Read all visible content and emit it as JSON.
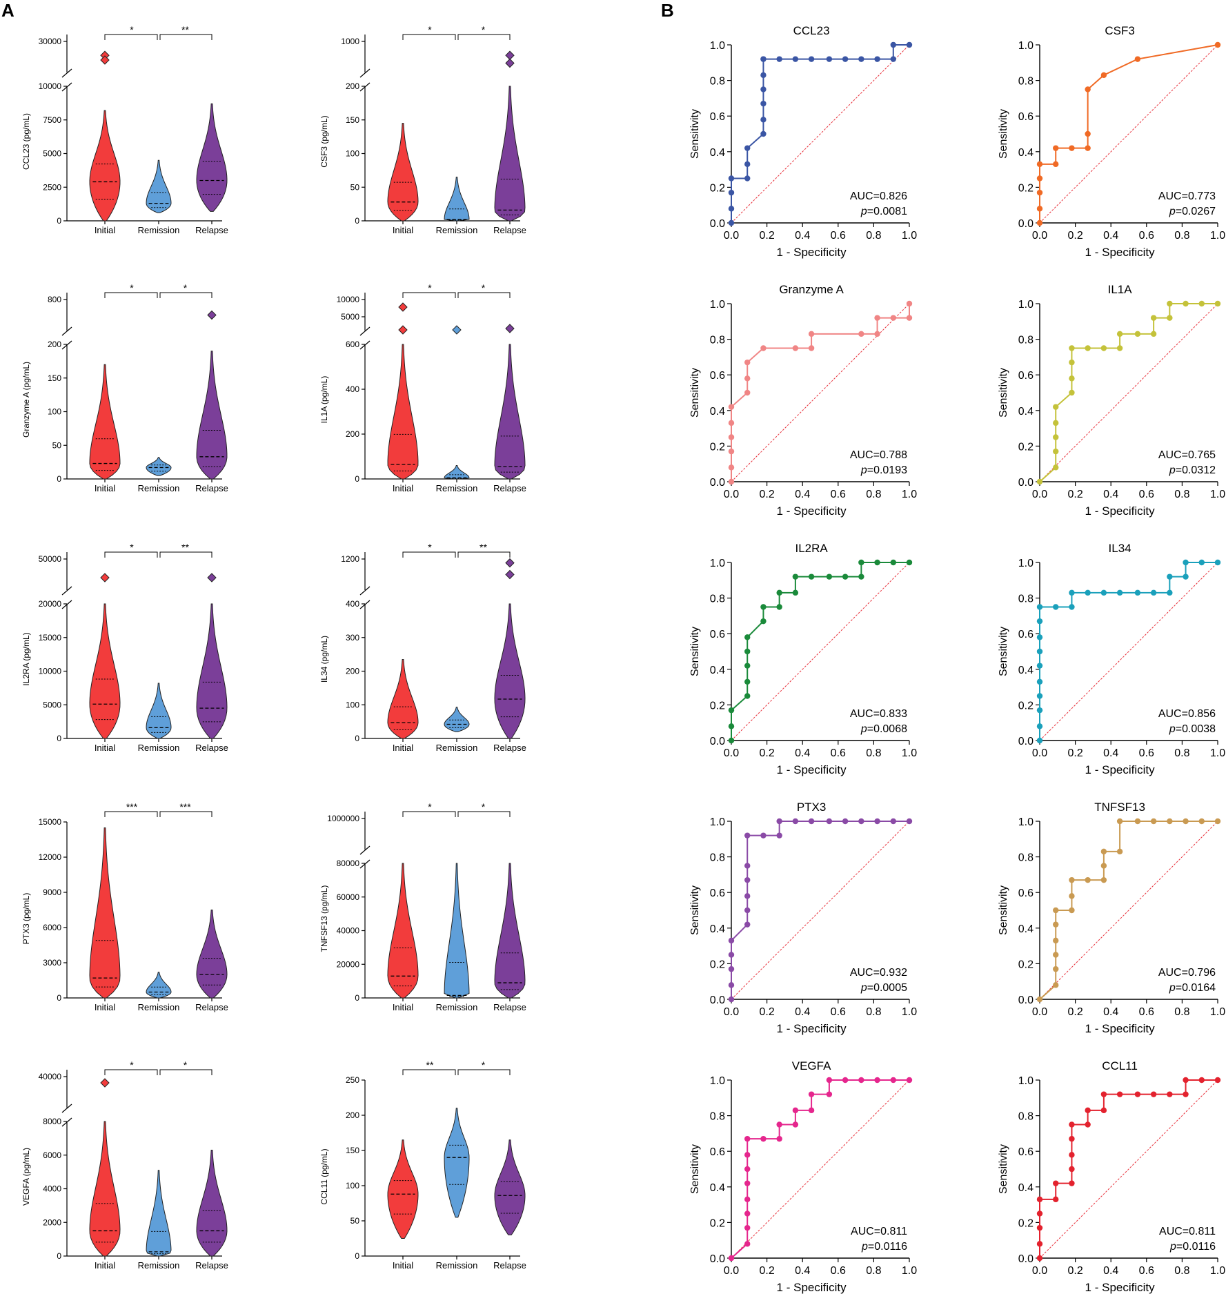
{
  "panel_labels": {
    "a": "A",
    "b": "B"
  },
  "groups": [
    "Initial",
    "Remission",
    "Relapse"
  ],
  "colors": {
    "Initial": "#f23c3c",
    "Remission": "#5f9fd9",
    "Relapse": "#7b3f99",
    "diagonal": "#e8323c"
  },
  "chart_data": [
    {
      "type": "violin",
      "name": "CCL23",
      "ylabel": "CCL23 (pg/mL)",
      "break": {
        "lower": [
          0,
          10000
        ],
        "upper_ticks": [
          30000
        ],
        "upper_range": [
          20000,
          30000
        ]
      },
      "yticks": [
        0,
        2500,
        5000,
        7500,
        10000
      ],
      "tick_labels": [
        "0",
        "2500",
        "5000",
        "7500",
        "10000"
      ],
      "upper_tick_labels": [
        "30000"
      ],
      "sig": [
        "*",
        "**"
      ],
      "outliers": {
        "Initial": [
          25500,
          24000
        ],
        "Remission": [],
        "Relapse": []
      },
      "medians": [
        2900,
        1300,
        3000
      ],
      "ranges": [
        [
          0,
          8200
        ],
        [
          600,
          4500
        ],
        [
          700,
          8700
        ]
      ]
    },
    {
      "type": "violin",
      "name": "CSF3",
      "ylabel": "CSF3 (pg/mL)",
      "break": {
        "lower": [
          0,
          200
        ],
        "upper_ticks": [
          1000
        ],
        "upper_range": [
          600,
          1000
        ]
      },
      "yticks": [
        0,
        50,
        100,
        150,
        200
      ],
      "tick_labels": [
        "0",
        "50",
        "100",
        "150",
        "200"
      ],
      "upper_tick_labels": [
        "1000"
      ],
      "sig": [
        "*",
        "*"
      ],
      "outliers": {
        "Initial": [],
        "Remission": [],
        "Relapse": [
          820,
          720
        ]
      },
      "medians": [
        28,
        2,
        16
      ],
      "ranges": [
        [
          0,
          145
        ],
        [
          0,
          65
        ],
        [
          0,
          200
        ]
      ]
    },
    {
      "type": "violin",
      "name": "Granzyme A",
      "ylabel": "Granzyme A (pg/mL)",
      "break": {
        "lower": [
          0,
          200
        ],
        "upper_ticks": [
          800
        ],
        "upper_range": [
          500,
          800
        ]
      },
      "yticks": [
        0,
        50,
        100,
        150,
        200
      ],
      "tick_labels": [
        "0",
        "50",
        "100",
        "150",
        "200"
      ],
      "upper_tick_labels": [
        "800"
      ],
      "sig": [
        "*",
        "*"
      ],
      "outliers": {
        "Initial": [],
        "Remission": [],
        "Relapse": [
          650
        ]
      },
      "medians": [
        23,
        17,
        33
      ],
      "ranges": [
        [
          0,
          170
        ],
        [
          5,
          32
        ],
        [
          0,
          190
        ]
      ]
    },
    {
      "type": "violin",
      "name": "IL1A",
      "ylabel": "IL1A (pg/mL)",
      "break": {
        "lower": [
          0,
          600
        ],
        "upper_ticks": [
          5000,
          10000
        ],
        "upper_range": [
          1000,
          10000
        ]
      },
      "yticks": [
        0,
        200,
        400,
        600
      ],
      "tick_labels": [
        "0",
        "200",
        "400",
        "600"
      ],
      "upper_tick_labels": [
        "5000",
        "10000"
      ],
      "sig": [
        "*",
        "*"
      ],
      "outliers": {
        "Initial": [
          7800,
          1200
        ],
        "Remission": [
          1200
        ],
        "Relapse": [
          1600
        ]
      },
      "medians": [
        65,
        5,
        55
      ],
      "ranges": [
        [
          0,
          600
        ],
        [
          0,
          60
        ],
        [
          0,
          600
        ]
      ]
    },
    {
      "type": "violin",
      "name": "IL2RA",
      "ylabel": "IL2RA (pg/mL)",
      "break": {
        "lower": [
          0,
          20000
        ],
        "upper_ticks": [
          50000
        ],
        "upper_range": [
          30000,
          50000
        ]
      },
      "yticks": [
        0,
        5000,
        10000,
        15000,
        20000
      ],
      "tick_labels": [
        "0",
        "5000",
        "10000",
        "15000",
        "20000"
      ],
      "upper_tick_labels": [
        "50000"
      ],
      "sig": [
        "*",
        "**"
      ],
      "outliers": {
        "Initial": [
          38000
        ],
        "Remission": [],
        "Relapse": [
          38000
        ]
      },
      "medians": [
        5100,
        1600,
        4500
      ],
      "ranges": [
        [
          0,
          20000
        ],
        [
          0,
          8200
        ],
        [
          0,
          20000
        ]
      ]
    },
    {
      "type": "violin",
      "name": "IL34",
      "ylabel": "IL34 (pg/mL)",
      "break": {
        "lower": [
          0,
          400
        ],
        "upper_ticks": [
          1200
        ],
        "upper_range": [
          800,
          1200
        ]
      },
      "yticks": [
        0,
        100,
        200,
        300,
        400
      ],
      "tick_labels": [
        "0",
        "100",
        "200",
        "300",
        "400"
      ],
      "upper_tick_labels": [
        "1200"
      ],
      "sig": [
        "*",
        "**"
      ],
      "outliers": {
        "Initial": [],
        "Remission": [],
        "Relapse": [
          1150,
          1000
        ]
      },
      "medians": [
        47,
        42,
        117
      ],
      "ranges": [
        [
          0,
          235
        ],
        [
          20,
          93
        ],
        [
          0,
          400
        ]
      ]
    },
    {
      "type": "violin",
      "name": "PTX3",
      "ylabel": "PTX3 (pg/mL)",
      "yticks": [
        0,
        3000,
        6000,
        9000,
        12000,
        15000
      ],
      "tick_labels": [
        "0",
        "3000",
        "6000",
        "9000",
        "12000",
        "15000"
      ],
      "sig": [
        "***",
        "***"
      ],
      "outliers": {
        "Initial": [],
        "Remission": [],
        "Relapse": []
      },
      "medians": [
        1700,
        500,
        2000
      ],
      "ranges": [
        [
          0,
          14500
        ],
        [
          0,
          2200
        ],
        [
          0,
          7500
        ]
      ]
    },
    {
      "type": "violin",
      "name": "TNFSF13",
      "ylabel": "TNFSF13 (pg/mL)",
      "break": {
        "lower": [
          0,
          80000
        ],
        "upper_ticks": [
          1000000
        ],
        "upper_range": [
          100000,
          1000000
        ]
      },
      "yticks": [
        0,
        20000,
        40000,
        60000,
        80000
      ],
      "tick_labels": [
        "0",
        "20000",
        "40000",
        "60000",
        "80000"
      ],
      "upper_tick_labels": [
        "1000000"
      ],
      "sig": [
        "*",
        "*"
      ],
      "outliers": {
        "Initial": [],
        "Remission": [],
        "Relapse": []
      },
      "medians": [
        13000,
        1500,
        9000
      ],
      "ranges": [
        [
          0,
          80000
        ],
        [
          0,
          80000
        ],
        [
          0,
          80000
        ]
      ]
    },
    {
      "type": "violin",
      "name": "VEGFA",
      "ylabel": "VEGFA (pg/mL)",
      "break": {
        "lower": [
          0,
          8000
        ],
        "upper_ticks": [
          40000
        ],
        "upper_range": [
          20000,
          40000
        ]
      },
      "yticks": [
        0,
        2000,
        4000,
        6000,
        8000
      ],
      "tick_labels": [
        "0",
        "2000",
        "4000",
        "6000",
        "8000"
      ],
      "upper_tick_labels": [
        "40000"
      ],
      "sig": [
        "*",
        "*"
      ],
      "outliers": {
        "Initial": [
          36000
        ],
        "Remission": [],
        "Relapse": []
      },
      "medians": [
        1500,
        250,
        1500
      ],
      "ranges": [
        [
          0,
          8000
        ],
        [
          0,
          5100
        ],
        [
          0,
          6300
        ]
      ]
    },
    {
      "type": "violin",
      "name": "CCL11",
      "ylabel": "CCL11 (pg/mL)",
      "yticks": [
        0,
        50,
        100,
        150,
        200,
        250
      ],
      "tick_labels": [
        "0",
        "50",
        "100",
        "150",
        "200",
        "250"
      ],
      "sig": [
        "**",
        "*"
      ],
      "outliers": {
        "Initial": [],
        "Remission": [],
        "Relapse": []
      },
      "medians": [
        88,
        140,
        86
      ],
      "ranges": [
        [
          25,
          165
        ],
        [
          55,
          210
        ],
        [
          30,
          165
        ]
      ]
    }
  ],
  "roc_data": [
    {
      "type": "line",
      "title": "CCL23",
      "color": "#3a55a4",
      "auc": "AUC=0.826",
      "p": "=0.0081",
      "x": [
        0,
        0,
        0,
        0,
        0.09,
        0.09,
        0.09,
        0.18,
        0.18,
        0.18,
        0.18,
        0.18,
        0.18,
        0.18,
        0.27,
        0.36,
        0.45,
        0.55,
        0.64,
        0.73,
        0.82,
        0.91,
        0.91,
        1
      ],
      "y": [
        0,
        0.08,
        0.17,
        0.25,
        0.25,
        0.33,
        0.42,
        0.5,
        0.58,
        0.67,
        0.75,
        0.83,
        0.92,
        0.92,
        0.92,
        0.92,
        0.92,
        0.92,
        0.92,
        0.92,
        0.92,
        0.92,
        1,
        1
      ]
    },
    {
      "type": "line",
      "title": "CSF3",
      "color": "#f06a25",
      "auc": "AUC=0.773",
      "p": "=0.0267",
      "x": [
        0,
        0,
        0,
        0,
        0,
        0.09,
        0.09,
        0.18,
        0.27,
        0.27,
        0.27,
        0.36,
        0.55,
        1
      ],
      "y": [
        0,
        0.08,
        0.17,
        0.25,
        0.33,
        0.33,
        0.42,
        0.42,
        0.42,
        0.5,
        0.75,
        0.83,
        0.92,
        1
      ]
    },
    {
      "type": "line",
      "title": "Granzyme A",
      "color": "#f08585",
      "auc": "AUC=0.788",
      "p": "=0.0193",
      "x": [
        0,
        0,
        0,
        0,
        0,
        0,
        0.09,
        0.09,
        0.09,
        0.18,
        0.36,
        0.45,
        0.45,
        0.73,
        0.82,
        0.82,
        0.91,
        1,
        1
      ],
      "y": [
        0,
        0.08,
        0.17,
        0.25,
        0.33,
        0.42,
        0.5,
        0.58,
        0.67,
        0.75,
        0.75,
        0.75,
        0.83,
        0.83,
        0.83,
        0.92,
        0.92,
        0.92,
        1
      ]
    },
    {
      "type": "line",
      "title": "IL1A",
      "color": "#c4c23a",
      "auc": "AUC=0.765",
      "p": "=0.0312",
      "x": [
        0,
        0.09,
        0.09,
        0.09,
        0.09,
        0.09,
        0.18,
        0.18,
        0.18,
        0.18,
        0.27,
        0.36,
        0.45,
        0.45,
        0.55,
        0.64,
        0.64,
        0.73,
        0.73,
        0.82,
        0.91,
        1
      ],
      "y": [
        0,
        0.08,
        0.17,
        0.25,
        0.33,
        0.42,
        0.5,
        0.58,
        0.67,
        0.75,
        0.75,
        0.75,
        0.75,
        0.83,
        0.83,
        0.83,
        0.92,
        0.92,
        1,
        1,
        1,
        1
      ]
    },
    {
      "type": "line",
      "title": "IL2RA",
      "color": "#1a8a3a",
      "auc": "AUC=0.833",
      "p": "=0.0068",
      "x": [
        0,
        0,
        0,
        0.09,
        0.09,
        0.09,
        0.09,
        0.09,
        0.18,
        0.18,
        0.27,
        0.27,
        0.36,
        0.36,
        0.45,
        0.55,
        0.64,
        0.73,
        0.73,
        0.82,
        0.91,
        1
      ],
      "y": [
        0,
        0.08,
        0.17,
        0.25,
        0.33,
        0.42,
        0.5,
        0.58,
        0.67,
        0.75,
        0.75,
        0.83,
        0.83,
        0.92,
        0.92,
        0.92,
        0.92,
        0.92,
        1,
        1,
        1,
        1
      ]
    },
    {
      "type": "line",
      "title": "IL34",
      "color": "#1aa0bb",
      "auc": "AUC=0.856",
      "p": "=0.0038",
      "x": [
        0,
        0,
        0,
        0,
        0,
        0,
        0,
        0,
        0,
        0,
        0.09,
        0.18,
        0.18,
        0.27,
        0.36,
        0.45,
        0.55,
        0.64,
        0.73,
        0.73,
        0.82,
        0.82,
        0.91,
        1
      ],
      "y": [
        0,
        0.08,
        0.17,
        0.25,
        0.33,
        0.42,
        0.5,
        0.58,
        0.67,
        0.75,
        0.75,
        0.75,
        0.83,
        0.83,
        0.83,
        0.83,
        0.83,
        0.83,
        0.83,
        0.92,
        0.92,
        1,
        1,
        1
      ]
    },
    {
      "type": "line",
      "title": "PTX3",
      "color": "#8a4aa6",
      "auc": "AUC=0.932",
      "p": "=0.0005",
      "x": [
        0,
        0,
        0,
        0,
        0,
        0.09,
        0.09,
        0.09,
        0.09,
        0.09,
        0.09,
        0.18,
        0.27,
        0.27,
        0.36,
        0.45,
        0.55,
        0.64,
        0.73,
        0.82,
        0.91,
        1
      ],
      "y": [
        0,
        0.08,
        0.17,
        0.25,
        0.33,
        0.42,
        0.5,
        0.58,
        0.67,
        0.75,
        0.92,
        0.92,
        0.92,
        1,
        1,
        1,
        1,
        1,
        1,
        1,
        1,
        1
      ]
    },
    {
      "type": "line",
      "title": "TNFSF13",
      "color": "#c99a52",
      "auc": "AUC=0.796",
      "p": "=0.0164",
      "x": [
        0,
        0.09,
        0.09,
        0.09,
        0.09,
        0.09,
        0.09,
        0.18,
        0.18,
        0.18,
        0.27,
        0.36,
        0.36,
        0.36,
        0.45,
        0.45,
        0.55,
        0.64,
        0.73,
        0.82,
        0.91,
        1
      ],
      "y": [
        0,
        0.08,
        0.17,
        0.25,
        0.33,
        0.42,
        0.5,
        0.5,
        0.58,
        0.67,
        0.67,
        0.67,
        0.75,
        0.83,
        0.83,
        1,
        1,
        1,
        1,
        1,
        1,
        1
      ]
    },
    {
      "type": "line",
      "title": "VEGFA",
      "color": "#e5268d",
      "auc": "AUC=0.811",
      "p": "=0.0116",
      "x": [
        0,
        0.09,
        0.09,
        0.09,
        0.09,
        0.09,
        0.09,
        0.09,
        0.09,
        0.18,
        0.27,
        0.27,
        0.36,
        0.36,
        0.45,
        0.45,
        0.55,
        0.55,
        0.64,
        0.73,
        0.82,
        0.91,
        1
      ],
      "y": [
        0,
        0.08,
        0.17,
        0.25,
        0.33,
        0.42,
        0.5,
        0.58,
        0.67,
        0.67,
        0.67,
        0.75,
        0.75,
        0.83,
        0.83,
        0.92,
        0.92,
        1,
        1,
        1,
        1,
        1,
        1
      ]
    },
    {
      "type": "line",
      "title": "CCL11",
      "color": "#e3222e",
      "auc": "AUC=0.811",
      "p": "=0.0116",
      "x": [
        0,
        0,
        0,
        0,
        0,
        0.09,
        0.09,
        0.18,
        0.18,
        0.18,
        0.18,
        0.18,
        0.27,
        0.27,
        0.36,
        0.36,
        0.45,
        0.55,
        0.64,
        0.73,
        0.82,
        0.82,
        0.91,
        1
      ],
      "y": [
        0,
        0.08,
        0.17,
        0.25,
        0.33,
        0.33,
        0.42,
        0.42,
        0.5,
        0.58,
        0.67,
        0.75,
        0.75,
        0.83,
        0.83,
        0.92,
        0.92,
        0.92,
        0.92,
        0.92,
        0.92,
        1,
        1,
        1
      ]
    }
  ],
  "roc_axis": {
    "xlabel": "1 - Specificity",
    "ylabel": "Sensitivity",
    "ticks": [
      "0.0",
      "0.2",
      "0.4",
      "0.6",
      "0.8",
      "1.0"
    ],
    "p_prefix": "p"
  }
}
